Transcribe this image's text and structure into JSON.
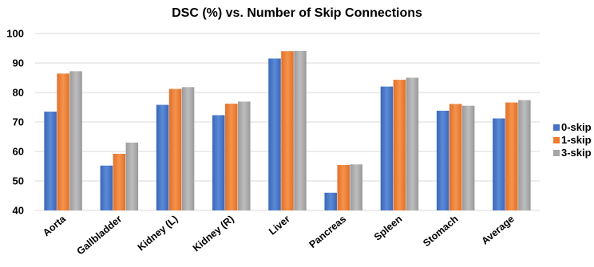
{
  "chart_data": {
    "type": "bar",
    "title": "DSC (%) vs. Number of Skip Connections",
    "xlabel": "",
    "ylabel": "",
    "ylim": [
      40,
      100
    ],
    "yticks": [
      "40",
      "50",
      "60",
      "70",
      "80",
      "90",
      "100"
    ],
    "grid": true,
    "legend_position": "right",
    "categories": [
      "Aorta",
      "Gallbladder",
      "Kidney (L)",
      "Kidney (R)",
      "Liver",
      "Pancreas",
      "Spleen",
      "Stomach",
      "Average"
    ],
    "series": [
      {
        "name": "0-skip",
        "color": "#4472C4",
        "values": [
          73.5,
          55.2,
          75.8,
          72.3,
          91.5,
          46.0,
          82.0,
          73.8,
          71.2
        ]
      },
      {
        "name": "1-skip",
        "color": "#ED7D31",
        "values": [
          86.4,
          59.2,
          81.2,
          76.2,
          94.0,
          55.4,
          84.3,
          76.1,
          76.6
        ]
      },
      {
        "name": "3-skip",
        "color": "#A5A5A5",
        "values": [
          87.2,
          63.0,
          81.8,
          76.9,
          94.1,
          55.6,
          85.0,
          75.5,
          77.4
        ]
      }
    ]
  }
}
